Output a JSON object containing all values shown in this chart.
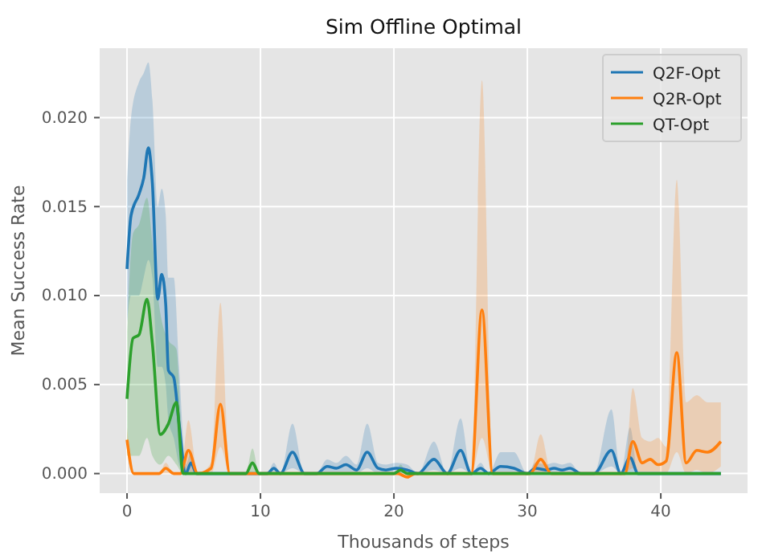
{
  "chart_data": {
    "type": "line",
    "title": "Sim Offline Optimal",
    "xlabel": "Thousands of steps",
    "ylabel": "Mean Success Rate",
    "xlim": [
      -2.05,
      46.5
    ],
    "ylim": [
      -0.0011,
      0.0239
    ],
    "xticks": [
      0,
      10,
      20,
      30,
      40
    ],
    "yticks": [
      {
        "value": 0,
        "label": "0.000"
      },
      {
        "value": 0.005,
        "label": "0.005"
      },
      {
        "value": 0.01,
        "label": "0.010"
      },
      {
        "value": 0.015,
        "label": "0.015"
      },
      {
        "value": 0.02,
        "label": "0.020"
      }
    ],
    "grid": true,
    "legend": "top right",
    "series": [
      {
        "name": "Q2F-Opt",
        "color": "#1f77b4",
        "x": [
          0,
          0.3,
          0.9,
          1.25,
          1.6,
          1.9,
          2.3,
          2.6,
          2.9,
          3.1,
          3.5,
          3.9,
          4.4,
          4.8,
          5.2,
          10.5,
          11,
          11.5,
          12.4,
          13.3,
          14.2,
          15,
          15.7,
          16.4,
          17.2,
          18,
          18.8,
          19.4,
          20.2,
          21,
          21.8,
          23,
          24,
          25,
          25.8,
          26.5,
          27.1,
          28,
          29,
          30,
          30.6,
          31.4,
          32,
          32.6,
          33.2,
          34,
          35,
          36.3,
          37,
          37.7,
          38.3,
          39,
          44.5
        ],
        "values": [
          0.0115,
          0.0145,
          0.0157,
          0.0166,
          0.0183,
          0.0163,
          0.0098,
          0.0112,
          0.0095,
          0.0058,
          0.0054,
          0.0028,
          0,
          0.0006,
          0,
          0,
          0.0003,
          0,
          0.0012,
          0,
          0,
          0.0004,
          0.0003,
          0.0005,
          0.0002,
          0.0012,
          0.0003,
          0.0002,
          0.0003,
          0.0002,
          0,
          0.0008,
          0,
          0.0013,
          0,
          0.0003,
          0,
          0.0004,
          0.0003,
          0,
          0.0003,
          0.0002,
          0.0003,
          0.0002,
          0.0003,
          0,
          0,
          0.0013,
          0,
          0.0009,
          0,
          0,
          0
        ],
        "lower": [
          0.0085,
          0.01,
          0.01,
          0.011,
          0.012,
          0.011,
          0.006,
          0.006,
          0.005,
          0.003,
          0.002,
          0.0005,
          0,
          0,
          0,
          0,
          0,
          0,
          0.0003,
          0,
          0,
          0,
          0,
          0,
          0,
          0.0003,
          0,
          0,
          0,
          0,
          0,
          0.0002,
          0,
          0.0003,
          0,
          0,
          0,
          0,
          0,
          0,
          0,
          0,
          0,
          0,
          0,
          0,
          0,
          0.0004,
          0,
          0,
          0,
          0,
          0
        ],
        "upper": [
          0.0165,
          0.02,
          0.022,
          0.0225,
          0.0231,
          0.021,
          0.015,
          0.016,
          0.0145,
          0.011,
          0.011,
          0.006,
          0.0005,
          0.0012,
          0,
          0,
          0.0006,
          0,
          0.0028,
          0,
          0,
          0.0008,
          0.0006,
          0.001,
          0.0005,
          0.0028,
          0.0006,
          0.0005,
          0.0006,
          0.0005,
          0,
          0.0018,
          0,
          0.0031,
          0,
          0.0006,
          0,
          0.0012,
          0.0012,
          0,
          0.0006,
          0.0005,
          0.0006,
          0.0005,
          0.0006,
          0,
          0,
          0.0036,
          0,
          0.0026,
          0,
          0,
          0
        ]
      },
      {
        "name": "Q2R-Opt",
        "color": "#ff7f0e",
        "x": [
          0,
          0.5,
          2.4,
          2.9,
          3.5,
          4.0,
          4.6,
          5.3,
          6.3,
          7.0,
          7.7,
          20.3,
          21,
          21.6,
          25.8,
          26.6,
          27.4,
          30.2,
          31,
          31.8,
          37.3,
          37.9,
          38.6,
          39.2,
          39.8,
          40.4,
          41.2,
          41.9,
          42.7,
          43.5,
          44.5
        ],
        "values": [
          0.0019,
          0,
          0,
          0.0003,
          0,
          0,
          0.0013,
          0,
          0.0003,
          0.0039,
          0,
          0,
          -0.0002,
          0,
          0,
          0.0092,
          0,
          0,
          0.0008,
          0,
          0,
          0.0018,
          0.0006,
          0.0008,
          0.0005,
          0.0007,
          0.0068,
          0.0006,
          0.0013,
          0.0012,
          0.0018
        ],
        "lower": [
          0.0012,
          0,
          0,
          0,
          0,
          0,
          0,
          0,
          0,
          0.0015,
          0,
          0,
          -0.0003,
          0,
          0,
          0.002,
          0,
          0,
          0,
          0,
          0,
          0.0003,
          0,
          0,
          0,
          0,
          0.0012,
          0,
          0.0002,
          0,
          0.0004
        ],
        "upper": [
          0.0026,
          0,
          0,
          0.0006,
          0,
          0,
          0.003,
          0,
          0.0006,
          0.0096,
          0,
          0,
          0,
          0,
          0,
          0.0221,
          0,
          0,
          0.0022,
          0,
          0,
          0.0048,
          0.002,
          0.0018,
          0.002,
          0.0015,
          0.0165,
          0.004,
          0.0044,
          0.004,
          0.004
        ]
      },
      {
        "name": "QT-Opt",
        "color": "#2ca02c",
        "x": [
          0,
          0.45,
          0.9,
          1.5,
          1.9,
          2.5,
          3.1,
          3.7,
          4.2,
          4.5,
          8.9,
          9.4,
          9.9,
          20,
          20.5,
          21,
          44.5
        ],
        "values": [
          0.0042,
          0.0076,
          0.0078,
          0.0098,
          0.0073,
          0.0022,
          0.0028,
          0.004,
          0,
          0,
          0,
          0.0006,
          0,
          0,
          0.0002,
          0,
          0
        ],
        "lower": [
          0.001,
          0.001,
          0.001,
          0.002,
          0.001,
          0.0005,
          0.001,
          0.0005,
          0,
          0,
          0,
          0,
          0,
          0,
          0,
          0,
          0
        ],
        "upper": [
          0.008,
          0.0135,
          0.014,
          0.0155,
          0.013,
          0.009,
          0.0075,
          0.007,
          0.0008,
          0,
          0,
          0.0014,
          0,
          0,
          0.0005,
          0,
          0
        ]
      }
    ]
  }
}
